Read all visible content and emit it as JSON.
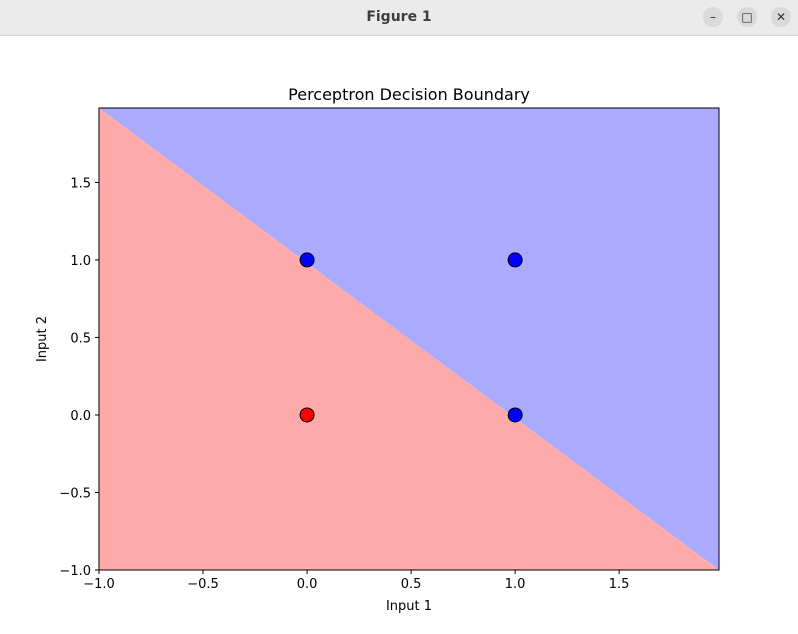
{
  "window": {
    "title": "Figure 1",
    "controls": {
      "minimize": "–",
      "maximize": "□",
      "close": "✕"
    }
  },
  "chart_data": {
    "type": "scatter",
    "title": "Perceptron Decision Boundary",
    "xlabel": "Input 1",
    "ylabel": "Input 2",
    "xlim": [
      -1.0,
      1.98
    ],
    "ylim": [
      -1.0,
      1.98
    ],
    "x_ticks": [
      -1.0,
      -0.5,
      0.0,
      0.5,
      1.0,
      1.5
    ],
    "x_tick_labels": [
      "−1.0",
      "−0.5",
      "0.0",
      "0.5",
      "1.0",
      "1.5"
    ],
    "y_ticks": [
      -1.0,
      -0.5,
      0.0,
      0.5,
      1.0,
      1.5
    ],
    "y_tick_labels": [
      "−1.0",
      "−0.5",
      "0.0",
      "0.5",
      "1.0",
      "1.5"
    ],
    "grid": false,
    "decision_boundary": {
      "equation": "x + y = 1",
      "points": [
        [
          -1.0,
          1.98
        ],
        [
          1.98,
          -1.0
        ]
      ]
    },
    "regions": [
      {
        "class": 0,
        "side": "below boundary",
        "color": "#ffaaaa"
      },
      {
        "class": 1,
        "side": "above boundary",
        "color": "#aaaaff"
      }
    ],
    "points": [
      {
        "x": 0,
        "y": 0,
        "class": 0,
        "color": "#ff0000"
      },
      {
        "x": 0,
        "y": 1,
        "class": 1,
        "color": "#0000ff"
      },
      {
        "x": 1,
        "y": 0,
        "class": 1,
        "color": "#0000ff"
      },
      {
        "x": 1,
        "y": 1,
        "class": 1,
        "color": "#0000ff"
      }
    ]
  }
}
